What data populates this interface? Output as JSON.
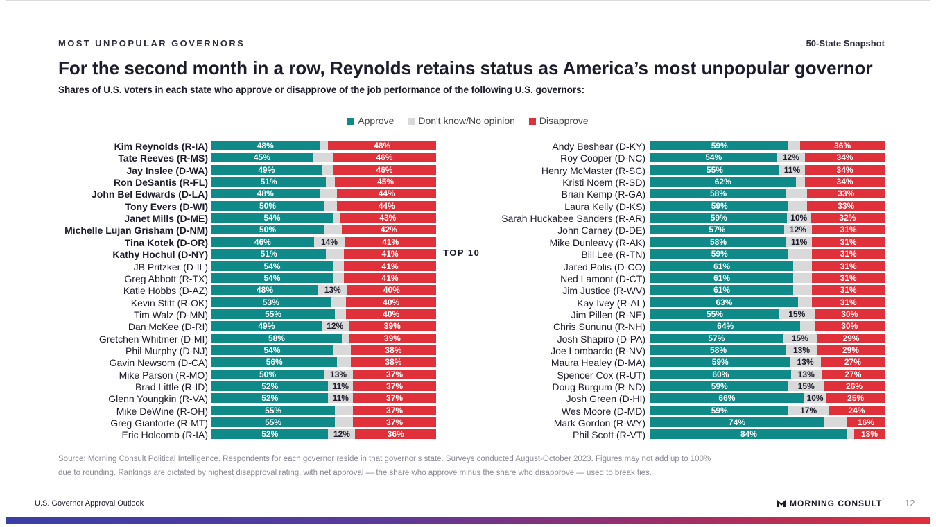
{
  "header": {
    "eyebrow": "MOST UNPOPULAR GOVERNORS",
    "snapshot": "50-State Snapshot",
    "title": "For the second month in a row, Reynolds retains status as America’s most unpopular governor",
    "subtitle": "Shares of U.S. voters in each state who approve or disapprove of the job performance of the following U.S. governors:"
  },
  "colors": {
    "approve": "#0f8a88",
    "dont_know": "#d9d9d9",
    "disapprove": "#e0303a"
  },
  "top10_label": "TOP 10",
  "chart_data": {
    "type": "stacked-bar-horizontal",
    "unit": "%",
    "legend": [
      "Approve",
      "Don't know/No opinion",
      "Disapprove"
    ],
    "panels": [
      {
        "governors": [
          {
            "name": "Kim Reynolds (R-IA)",
            "approve": 48,
            "dk": 4,
            "disapprove": 48,
            "dk_label": "",
            "bold": true
          },
          {
            "name": "Tate Reeves (R-MS)",
            "approve": 45,
            "dk": 9,
            "disapprove": 46,
            "dk_label": "",
            "bold": true
          },
          {
            "name": "Jay Inslee (D-WA)",
            "approve": 49,
            "dk": 5,
            "disapprove": 46,
            "dk_label": "",
            "bold": true
          },
          {
            "name": "Ron DeSantis (R-FL)",
            "approve": 51,
            "dk": 4,
            "disapprove": 45,
            "dk_label": "",
            "bold": true
          },
          {
            "name": "John Bel Edwards (D-LA)",
            "approve": 48,
            "dk": 8,
            "disapprove": 44,
            "dk_label": "",
            "bold": true
          },
          {
            "name": "Tony Evers (D-WI)",
            "approve": 50,
            "dk": 6,
            "disapprove": 44,
            "dk_label": "",
            "bold": true
          },
          {
            "name": "Janet Mills (D-ME)",
            "approve": 54,
            "dk": 3,
            "disapprove": 43,
            "dk_label": "",
            "bold": true
          },
          {
            "name": "Michelle Lujan Grisham (D-NM)",
            "approve": 50,
            "dk": 8,
            "disapprove": 42,
            "dk_label": "",
            "bold": true
          },
          {
            "name": "Tina Kotek (D-OR)",
            "approve": 46,
            "dk": 14,
            "disapprove": 41,
            "dk_label": "14%",
            "bold": true
          },
          {
            "name": "Kathy Hochul (D-NY)",
            "approve": 51,
            "dk": 8,
            "disapprove": 41,
            "dk_label": "",
            "bold": true
          },
          {
            "name": "JB Pritzker (D-IL)",
            "approve": 54,
            "dk": 5,
            "disapprove": 41,
            "dk_label": "",
            "bold": false
          },
          {
            "name": "Greg Abbott (R-TX)",
            "approve": 54,
            "dk": 5,
            "disapprove": 41,
            "dk_label": "",
            "bold": false
          },
          {
            "name": "Katie Hobbs (D-AZ)",
            "approve": 48,
            "dk": 13,
            "disapprove": 40,
            "dk_label": "13%",
            "bold": false
          },
          {
            "name": "Kevin Stitt (R-OK)",
            "approve": 53,
            "dk": 7,
            "disapprove": 40,
            "dk_label": "",
            "bold": false
          },
          {
            "name": "Tim Walz (D-MN)",
            "approve": 55,
            "dk": 5,
            "disapprove": 40,
            "dk_label": "",
            "bold": false
          },
          {
            "name": "Dan McKee (D-RI)",
            "approve": 49,
            "dk": 12,
            "disapprove": 39,
            "dk_label": "12%",
            "bold": false
          },
          {
            "name": "Gretchen Whitmer (D-MI)",
            "approve": 58,
            "dk": 3,
            "disapprove": 39,
            "dk_label": "",
            "bold": false
          },
          {
            "name": "Phil Murphy (D-NJ)",
            "approve": 54,
            "dk": 8,
            "disapprove": 38,
            "dk_label": "",
            "bold": false
          },
          {
            "name": "Gavin Newsom (D-CA)",
            "approve": 56,
            "dk": 6,
            "disapprove": 38,
            "dk_label": "",
            "bold": false
          },
          {
            "name": "Mike Parson (R-MO)",
            "approve": 50,
            "dk": 13,
            "disapprove": 37,
            "dk_label": "13%",
            "bold": false
          },
          {
            "name": "Brad Little (R-ID)",
            "approve": 52,
            "dk": 11,
            "disapprove": 37,
            "dk_label": "11%",
            "bold": false
          },
          {
            "name": "Glenn Youngkin (R-VA)",
            "approve": 52,
            "dk": 11,
            "disapprove": 37,
            "dk_label": "11%",
            "bold": false
          },
          {
            "name": "Mike DeWine (R-OH)",
            "approve": 55,
            "dk": 8,
            "disapprove": 37,
            "dk_label": "",
            "bold": false
          },
          {
            "name": "Greg Gianforte (R-MT)",
            "approve": 55,
            "dk": 8,
            "disapprove": 37,
            "dk_label": "",
            "bold": false
          },
          {
            "name": "Eric Holcomb (R-IA)",
            "approve": 52,
            "dk": 12,
            "disapprove": 36,
            "dk_label": "12%",
            "bold": false
          }
        ]
      },
      {
        "governors": [
          {
            "name": "Andy Beshear (D-KY)",
            "approve": 59,
            "dk": 5,
            "disapprove": 36,
            "dk_label": "",
            "bold": false
          },
          {
            "name": "Roy Cooper (D-NC)",
            "approve": 54,
            "dk": 12,
            "disapprove": 34,
            "dk_label": "12%",
            "bold": false
          },
          {
            "name": "Henry McMaster (R-SC)",
            "approve": 55,
            "dk": 11,
            "disapprove": 34,
            "dk_label": "11%",
            "bold": false
          },
          {
            "name": "Kristi Noem (R-SD)",
            "approve": 62,
            "dk": 4,
            "disapprove": 34,
            "dk_label": "",
            "bold": false
          },
          {
            "name": "Brian Kemp (R-GA)",
            "approve": 58,
            "dk": 9,
            "disapprove": 33,
            "dk_label": "",
            "bold": false
          },
          {
            "name": "Laura Kelly (D-KS)",
            "approve": 59,
            "dk": 8,
            "disapprove": 33,
            "dk_label": "",
            "bold": false
          },
          {
            "name": "Sarah Huckabee Sanders (R-AR)",
            "approve": 59,
            "dk": 10,
            "disapprove": 32,
            "dk_label": "10%",
            "bold": false
          },
          {
            "name": "John Carney (D-DE)",
            "approve": 57,
            "dk": 12,
            "disapprove": 31,
            "dk_label": "12%",
            "bold": false
          },
          {
            "name": "Mike Dunleavy (R-AK)",
            "approve": 58,
            "dk": 11,
            "disapprove": 31,
            "dk_label": "11%",
            "bold": false
          },
          {
            "name": "Bill Lee (R-TN)",
            "approve": 59,
            "dk": 10,
            "disapprove": 31,
            "dk_label": "",
            "bold": false
          },
          {
            "name": "Jared Polis (D-CO)",
            "approve": 61,
            "dk": 8,
            "disapprove": 31,
            "dk_label": "",
            "bold": false
          },
          {
            "name": "Ned Lamont (D-CT)",
            "approve": 61,
            "dk": 8,
            "disapprove": 31,
            "dk_label": "",
            "bold": false
          },
          {
            "name": "Jim Justice (R-WV)",
            "approve": 61,
            "dk": 8,
            "disapprove": 31,
            "dk_label": "",
            "bold": false
          },
          {
            "name": "Kay Ivey (R-AL)",
            "approve": 63,
            "dk": 6,
            "disapprove": 31,
            "dk_label": "",
            "bold": false
          },
          {
            "name": "Jim Pillen (R-NE)",
            "approve": 55,
            "dk": 15,
            "disapprove": 30,
            "dk_label": "15%",
            "bold": false
          },
          {
            "name": "Chris Sununu (R-NH)",
            "approve": 64,
            "dk": 6,
            "disapprove": 30,
            "dk_label": "",
            "bold": false
          },
          {
            "name": "Josh Shapiro (D-PA)",
            "approve": 57,
            "dk": 15,
            "disapprove": 29,
            "dk_label": "15%",
            "bold": false
          },
          {
            "name": "Joe Lombardo (R-NV)",
            "approve": 58,
            "dk": 13,
            "disapprove": 29,
            "dk_label": "13%",
            "bold": false
          },
          {
            "name": "Maura Healey (D-MA)",
            "approve": 59,
            "dk": 13,
            "disapprove": 27,
            "dk_label": "13%",
            "bold": false
          },
          {
            "name": "Spencer Cox (R-UT)",
            "approve": 60,
            "dk": 13,
            "disapprove": 27,
            "dk_label": "13%",
            "bold": false
          },
          {
            "name": "Doug Burgum (R-ND)",
            "approve": 59,
            "dk": 15,
            "disapprove": 26,
            "dk_label": "15%",
            "bold": false
          },
          {
            "name": "Josh Green (D-HI)",
            "approve": 66,
            "dk": 10,
            "disapprove": 25,
            "dk_label": "10%",
            "bold": false
          },
          {
            "name": "Wes Moore (D-MD)",
            "approve": 59,
            "dk": 17,
            "disapprove": 24,
            "dk_label": "17%",
            "bold": false
          },
          {
            "name": "Mark Gordon (R-WY)",
            "approve": 74,
            "dk": 10,
            "disapprove": 16,
            "dk_label": "",
            "bold": false
          },
          {
            "name": "Phil Scott (R-VT)",
            "approve": 84,
            "dk": 3,
            "disapprove": 13,
            "dk_label": "",
            "bold": false
          }
        ]
      }
    ]
  },
  "source": {
    "line1": "Source: Morning Consult Political Intelligence. Respondents for each governor reside in that governor’s state. Surveys conducted August-October 2023. Figures may not add up to 100%",
    "line2": "due to rounding. Rankings are dictated by highest disapproval rating, with net approval — the share who approve minus the share who disapprove — used to break ties."
  },
  "footer": {
    "left": "U.S. Governor Approval Outlook",
    "brand": "MORNING CONSULT",
    "brand_mark": "˚",
    "page_number": "12"
  }
}
